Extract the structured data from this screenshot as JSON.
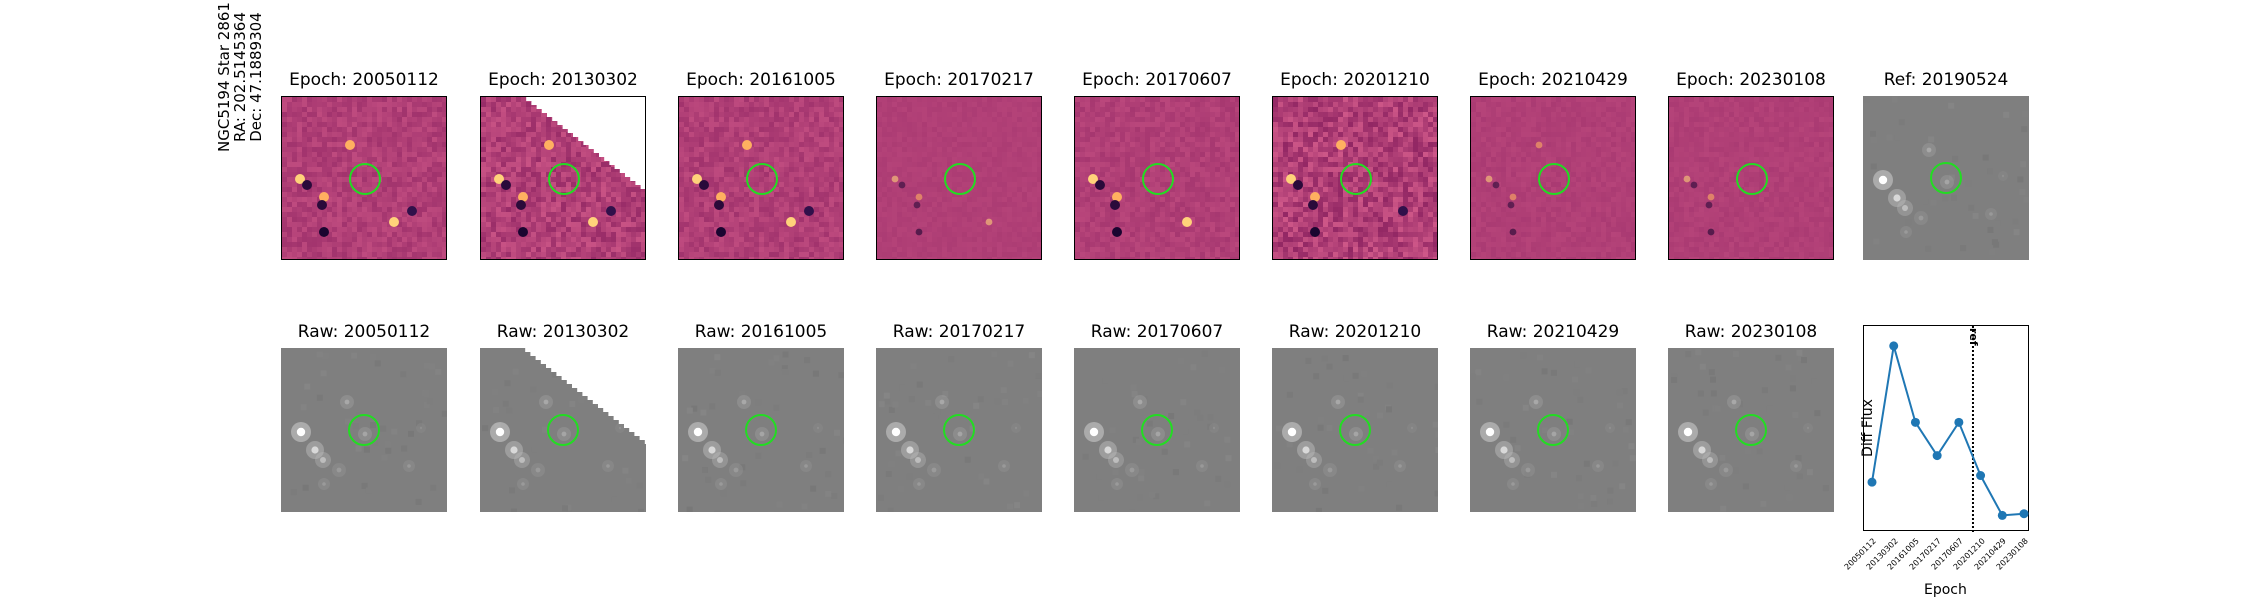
{
  "row_label": {
    "line1": "NGC5194 Star 2861",
    "line2": "RA: 202.5145364",
    "line3": "Dec: 47.1889304"
  },
  "diff_row": {
    "titles": [
      "Epoch: 20050112",
      "Epoch: 20130302",
      "Epoch: 20161005",
      "Epoch: 20170217",
      "Epoch: 20170607",
      "Epoch: 20201210",
      "Epoch: 20210429",
      "Epoch: 20230108"
    ],
    "ref_title": "Ref: 20190524"
  },
  "raw_row": {
    "titles": [
      "Raw: 20050112",
      "Raw: 20130302",
      "Raw: 20161005",
      "Raw: 20170217",
      "Raw: 20170607",
      "Raw: 20201210",
      "Raw: 20210429",
      "Raw: 20230108"
    ]
  },
  "colors": {
    "diff_background": "#b13f77",
    "raw_background": "#7f7f7f",
    "aperture": "#22dd22",
    "line": "#1f77b4"
  },
  "chart_data": {
    "type": "line",
    "xlabel": "Epoch",
    "ylabel": "Diff Flux",
    "categories": [
      "20050112",
      "20130302",
      "20161005",
      "20170217",
      "20170607",
      "20201210",
      "20210429",
      "20230108"
    ],
    "values": [
      0.13,
      0.95,
      0.49,
      0.29,
      0.49,
      0.17,
      -0.07,
      -0.06
    ],
    "ylim": [
      -0.17,
      1.07
    ],
    "ref_line": {
      "x_index": 4.65,
      "label": "ref",
      "style": "dotted"
    },
    "yticks_shown": false
  }
}
